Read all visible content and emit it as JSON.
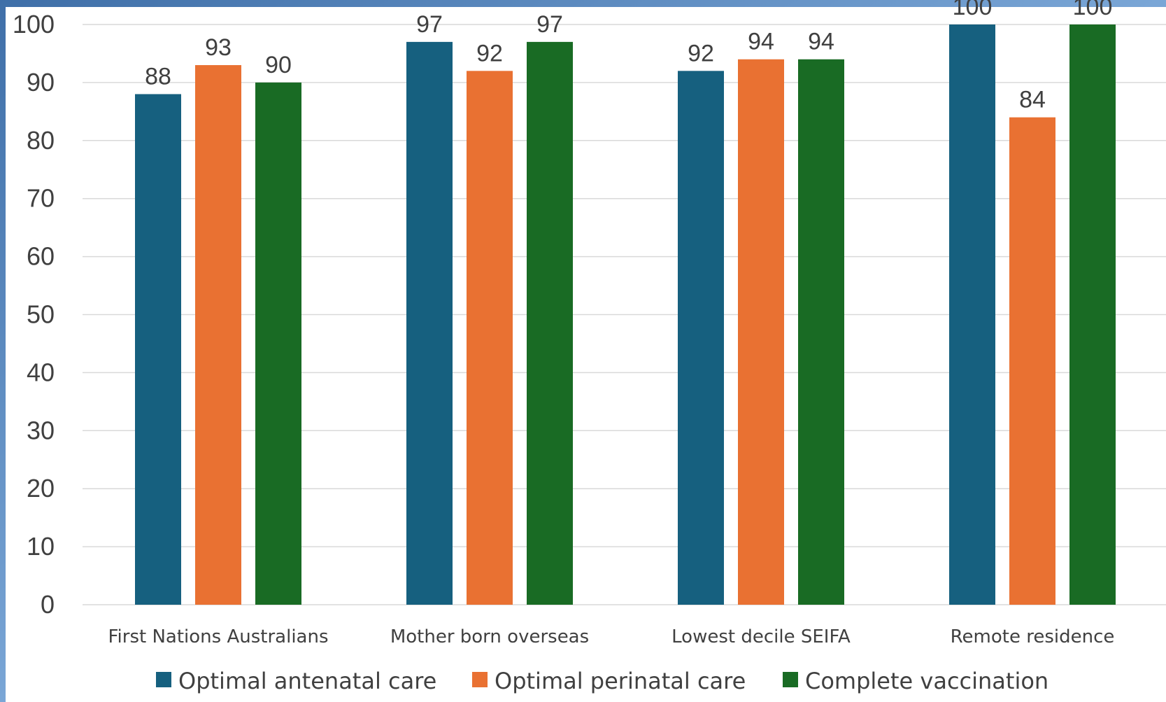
{
  "chart_data": {
    "type": "bar",
    "categories": [
      "First Nations Australians",
      "Mother born overseas",
      "Lowest decile SEIFA",
      "Remote residence"
    ],
    "series": [
      {
        "name": "Optimal antenatal care",
        "values": [
          88,
          97,
          92,
          100
        ],
        "color": "#16607f"
      },
      {
        "name": "Optimal perinatal care",
        "values": [
          93,
          92,
          94,
          84
        ],
        "color": "#e97132"
      },
      {
        "name": "Complete vaccination",
        "values": [
          90,
          97,
          94,
          100
        ],
        "color": "#196b24"
      }
    ],
    "ylim": [
      0,
      100
    ],
    "yticks": [
      0,
      10,
      20,
      30,
      40,
      50,
      60,
      70,
      80,
      90,
      100
    ],
    "grid": true,
    "legend_position": "bottom"
  },
  "colors": {
    "background_frame": "#4f86bf",
    "plot_background": "#ffffff",
    "gridline": "#d9d9d9",
    "text": "#404040"
  }
}
